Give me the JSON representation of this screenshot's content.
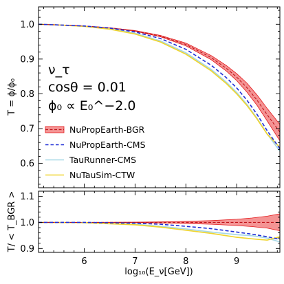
{
  "chart_data": [
    {
      "type": "line",
      "panel": "top",
      "xlim": [
        5.1,
        9.85
      ],
      "ylim": [
        0.53,
        1.05
      ],
      "xticks": [
        6,
        7,
        8,
        9
      ],
      "yticks": [
        0.6,
        0.7,
        0.8,
        0.9,
        1.0
      ],
      "ytick_labels": [
        "0.6",
        "0.7",
        "0.8",
        "0.9",
        "1.0"
      ],
      "ylabel": "T = ϕ/ϕ₀",
      "annotation": [
        "ν_τ",
        "cosθ = 0.01",
        "ϕ₀ ∝ E₀^−2.0"
      ],
      "legend_placement": "lower-left",
      "grid": false,
      "series": [
        {
          "name": "NuPropEarth-BGR",
          "style": "band-with-dashed-line",
          "color": "#e41a1c",
          "x": [
            5.1,
            5.5,
            6.0,
            6.5,
            7.0,
            7.5,
            8.0,
            8.5,
            8.8,
            9.0,
            9.2,
            9.4,
            9.6,
            9.85
          ],
          "y": [
            1.0,
            0.998,
            0.995,
            0.99,
            0.981,
            0.966,
            0.942,
            0.904,
            0.873,
            0.848,
            0.818,
            0.782,
            0.74,
            0.69
          ],
          "y_low": [
            1.0,
            0.998,
            0.995,
            0.99,
            0.98,
            0.964,
            0.938,
            0.898,
            0.865,
            0.838,
            0.805,
            0.767,
            0.722,
            0.665
          ],
          "y_high": [
            1.0,
            0.998,
            0.995,
            0.99,
            0.982,
            0.968,
            0.946,
            0.91,
            0.881,
            0.858,
            0.831,
            0.797,
            0.758,
            0.712
          ]
        },
        {
          "name": "NuPropEarth-CMS",
          "style": "dashed",
          "color": "#1f2ed6",
          "x": [
            5.1,
            5.5,
            6.0,
            6.5,
            7.0,
            7.5,
            8.0,
            8.5,
            8.8,
            9.0,
            9.2,
            9.4,
            9.6,
            9.85
          ],
          "y": [
            1.0,
            0.998,
            0.995,
            0.989,
            0.978,
            0.959,
            0.928,
            0.882,
            0.846,
            0.817,
            0.782,
            0.741,
            0.694,
            0.642
          ]
        },
        {
          "name": "TauRunner-CMS",
          "style": "solid",
          "color": "#a6d8e6",
          "x": [
            5.1,
            5.5,
            6.0,
            6.5,
            7.0,
            7.5,
            8.0,
            8.5,
            8.8,
            9.0,
            9.2,
            9.4,
            9.6,
            9.85
          ],
          "y": [
            1.0,
            0.998,
            0.994,
            0.987,
            0.974,
            0.952,
            0.918,
            0.87,
            0.833,
            0.804,
            0.77,
            0.73,
            0.685,
            0.635
          ]
        },
        {
          "name": "NuTauSim-CTW",
          "style": "solid",
          "color": "#f0d530",
          "x": [
            5.1,
            5.5,
            6.0,
            6.5,
            7.0,
            7.5,
            8.0,
            8.5,
            8.8,
            9.0,
            9.2,
            9.4,
            9.6,
            9.85
          ],
          "y": [
            1.0,
            0.998,
            0.994,
            0.986,
            0.972,
            0.949,
            0.914,
            0.866,
            0.829,
            0.8,
            0.767,
            0.728,
            0.684,
            0.646
          ]
        }
      ]
    },
    {
      "type": "line",
      "panel": "bottom",
      "xlim": [
        5.1,
        9.85
      ],
      "ylim": [
        0.885,
        1.12
      ],
      "xticks": [
        6,
        7,
        8,
        9
      ],
      "xtick_labels": [
        "6",
        "7",
        "8",
        "9"
      ],
      "yticks": [
        0.9,
        1.0,
        1.1
      ],
      "ytick_labels": [
        "0.9",
        "1.0",
        "1.1"
      ],
      "xlabel": "log₁₀(E_ν[GeV])",
      "ylabel": "T/ < T_BGR >",
      "grid": false,
      "series": [
        {
          "name": "NuPropEarth-BGR",
          "style": "band-with-dashed-line",
          "color": "#e41a1c",
          "x": [
            5.1,
            6.0,
            7.0,
            7.5,
            8.0,
            8.5,
            9.0,
            9.3,
            9.6,
            9.85
          ],
          "y": [
            1.0,
            1.0,
            1.0,
            1.0,
            1.0,
            1.0,
            1.0,
            1.0,
            1.0,
            1.0
          ],
          "y_low": [
            1.0,
            1.0,
            0.999,
            0.998,
            0.996,
            0.993,
            0.988,
            0.984,
            0.978,
            0.968
          ],
          "y_high": [
            1.0,
            1.0,
            1.001,
            1.002,
            1.004,
            1.007,
            1.012,
            1.017,
            1.024,
            1.033
          ]
        },
        {
          "name": "NuPropEarth-CMS",
          "style": "dashed",
          "color": "#1f2ed6",
          "x": [
            5.1,
            6.0,
            7.0,
            7.5,
            8.0,
            8.5,
            9.0,
            9.3,
            9.6,
            9.85
          ],
          "y": [
            1.0,
            1.0,
            0.997,
            0.993,
            0.985,
            0.976,
            0.963,
            0.955,
            0.945,
            0.935
          ]
        },
        {
          "name": "TauRunner-CMS",
          "style": "solid",
          "color": "#a6d8e6",
          "x": [
            5.1,
            6.0,
            7.0,
            7.5,
            8.0,
            8.5,
            9.0,
            9.3,
            9.6,
            9.85
          ],
          "y": [
            1.0,
            0.999,
            0.993,
            0.985,
            0.975,
            0.963,
            0.953,
            0.949,
            0.94,
            0.925
          ]
        },
        {
          "name": "NuTauSim-CTW",
          "style": "solid",
          "color": "#f0d530",
          "x": [
            5.1,
            6.0,
            7.0,
            7.5,
            8.0,
            8.5,
            9.0,
            9.3,
            9.6,
            9.85
          ],
          "y": [
            1.0,
            0.999,
            0.991,
            0.982,
            0.97,
            0.958,
            0.943,
            0.937,
            0.932,
            0.945
          ]
        }
      ]
    }
  ]
}
